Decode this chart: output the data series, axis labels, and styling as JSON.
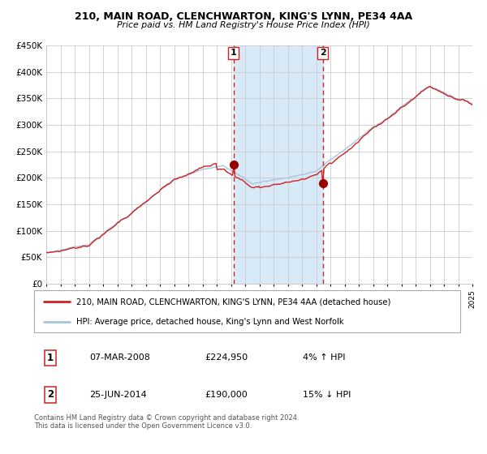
{
  "title": "210, MAIN ROAD, CLENCHWARTON, KING'S LYNN, PE34 4AA",
  "subtitle": "Price paid vs. HM Land Registry's House Price Index (HPI)",
  "ylim": [
    0,
    450000
  ],
  "yticks": [
    0,
    50000,
    100000,
    150000,
    200000,
    250000,
    300000,
    350000,
    400000,
    450000
  ],
  "ytick_labels": [
    "£0",
    "£50K",
    "£100K",
    "£150K",
    "£200K",
    "£250K",
    "£300K",
    "£350K",
    "£400K",
    "£450K"
  ],
  "hpi_color": "#a8c4e0",
  "price_color": "#cc2222",
  "marker_color": "#990000",
  "vline_color": "#cc2222",
  "shade_color": "#d8eaf8",
  "event1_price": 224950,
  "event2_price": 190000,
  "event1_year": 2008.19,
  "event2_year": 2014.47,
  "event1_label": "1",
  "event2_label": "2",
  "legend_price_label": "210, MAIN ROAD, CLENCHWARTON, KING'S LYNN, PE34 4AA (detached house)",
  "legend_hpi_label": "HPI: Average price, detached house, King's Lynn and West Norfolk",
  "table_row1": [
    "1",
    "07-MAR-2008",
    "£224,950",
    "4% ↑ HPI"
  ],
  "table_row2": [
    "2",
    "25-JUN-2014",
    "£190,000",
    "15% ↓ HPI"
  ],
  "footnote": "Contains HM Land Registry data © Crown copyright and database right 2024.\nThis data is licensed under the Open Government Licence v3.0.",
  "background_color": "#ffffff",
  "grid_color": "#cccccc",
  "start_year": 1995,
  "end_year": 2025
}
